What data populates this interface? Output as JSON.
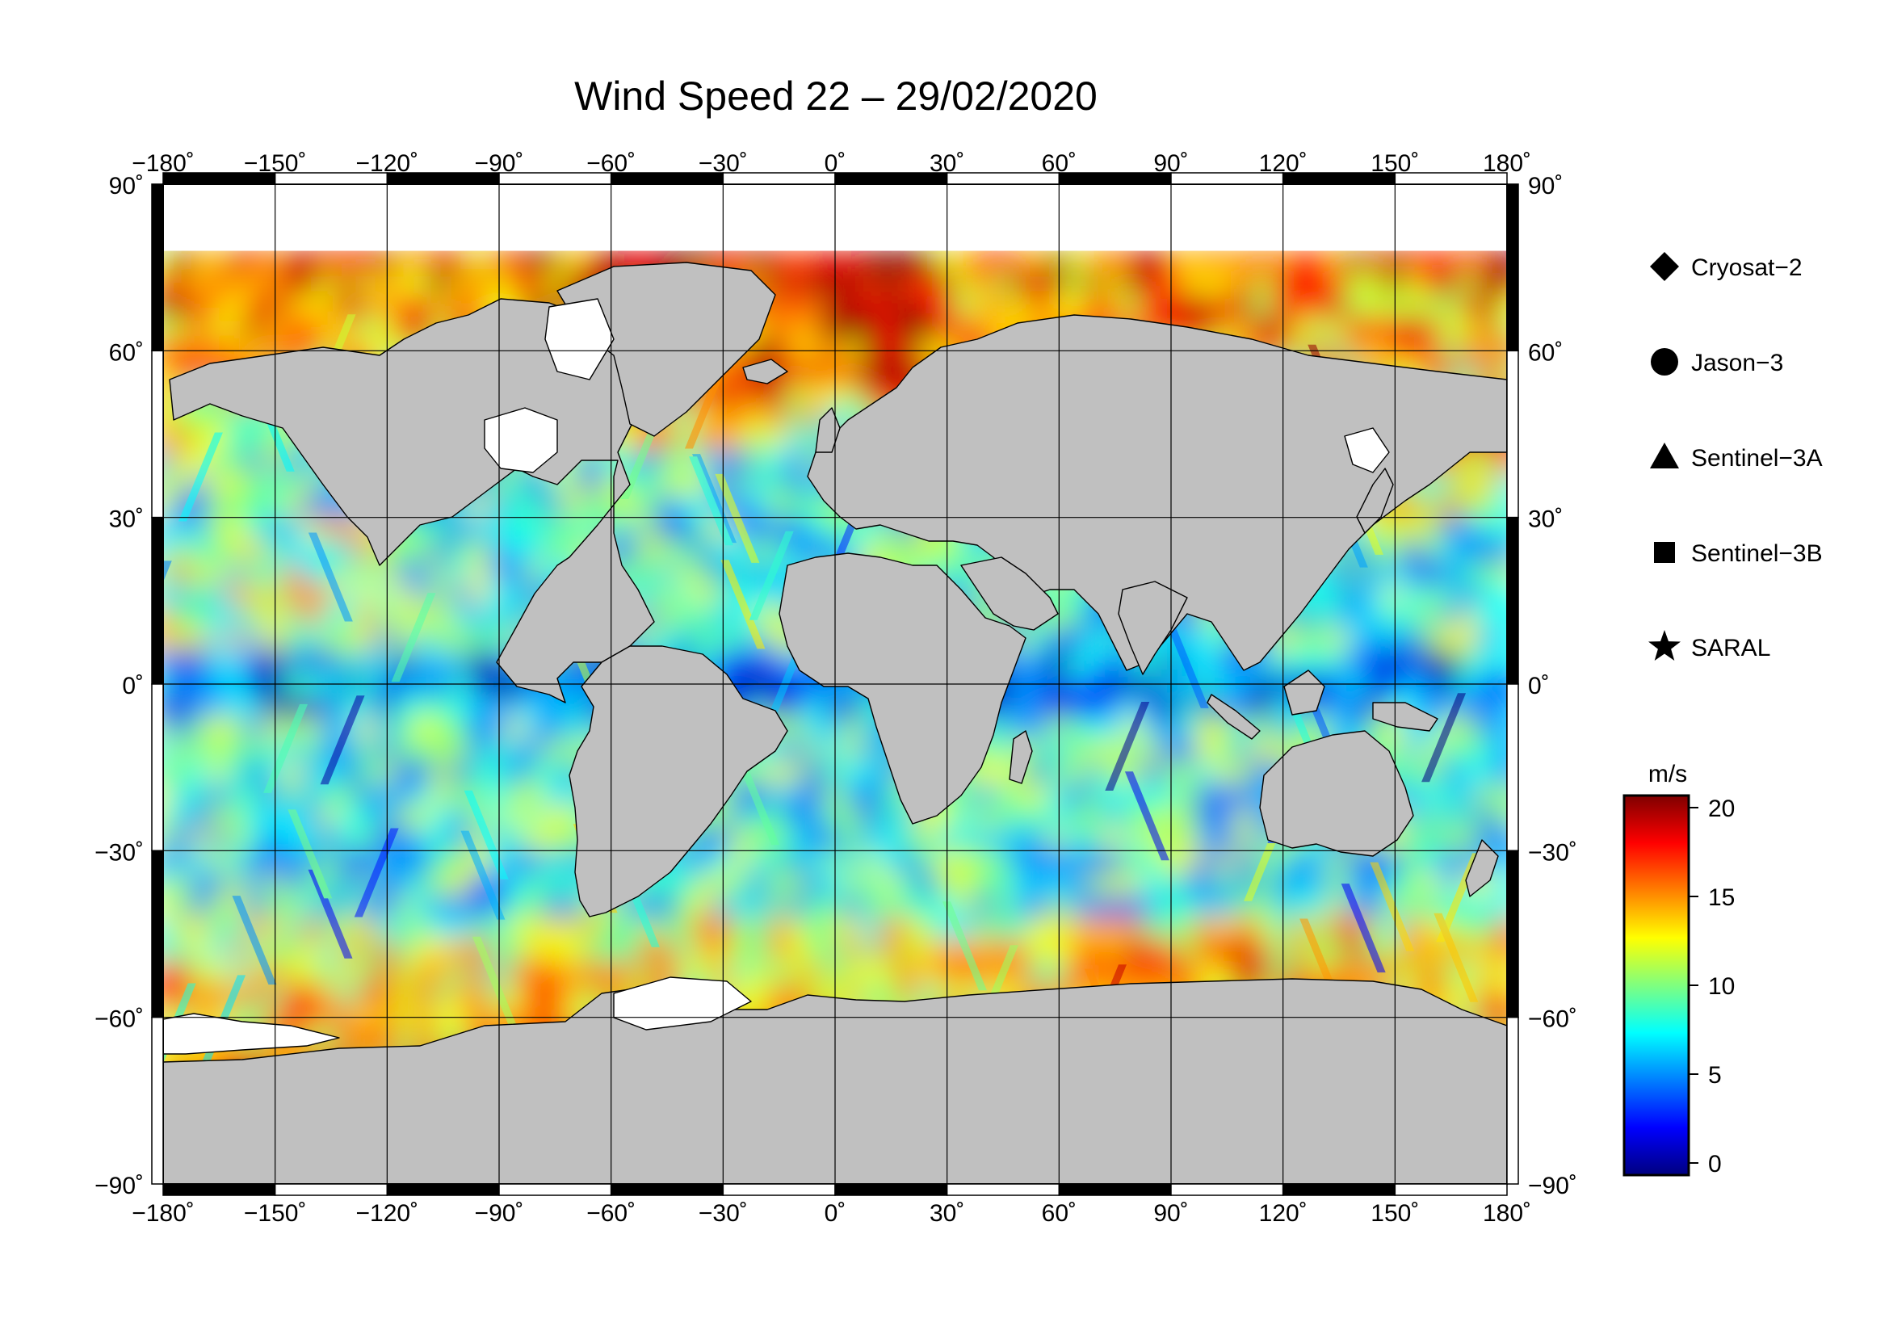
{
  "title": "Wind Speed 22 – 29/02/2020",
  "x_ticks": [
    "−180˚",
    "−150˚",
    "−120˚",
    "−90˚",
    "−60˚",
    "−30˚",
    "0˚",
    "30˚",
    "60˚",
    "90˚",
    "120˚",
    "150˚",
    "180˚"
  ],
  "y_ticks": [
    "90˚",
    "60˚",
    "30˚",
    "0˚",
    "−30˚",
    "−60˚",
    "−90˚"
  ],
  "legend": {
    "items": [
      {
        "label": "Cryosat−2",
        "marker": "diamond"
      },
      {
        "label": "Jason−3",
        "marker": "circle"
      },
      {
        "label": "Sentinel−3A",
        "marker": "triangle"
      },
      {
        "label": "Sentinel−3B",
        "marker": "square"
      },
      {
        "label": "SARAL",
        "marker": "star"
      }
    ]
  },
  "colorbar": {
    "unit": "m/s",
    "ticks": [
      "20",
      "15",
      "10",
      "5",
      "0"
    ],
    "min": 0,
    "max": 20,
    "colors": [
      "#00007f",
      "#0000ff",
      "#007fff",
      "#00ffff",
      "#7fff7f",
      "#ffff00",
      "#ff7f00",
      "#ff0000",
      "#7f0000"
    ]
  },
  "map": {
    "land_color": "#c0c0c0",
    "ice_color": "#ffffff",
    "lon_range": [
      -180,
      180
    ],
    "lat_range": [
      -90,
      90
    ]
  }
}
